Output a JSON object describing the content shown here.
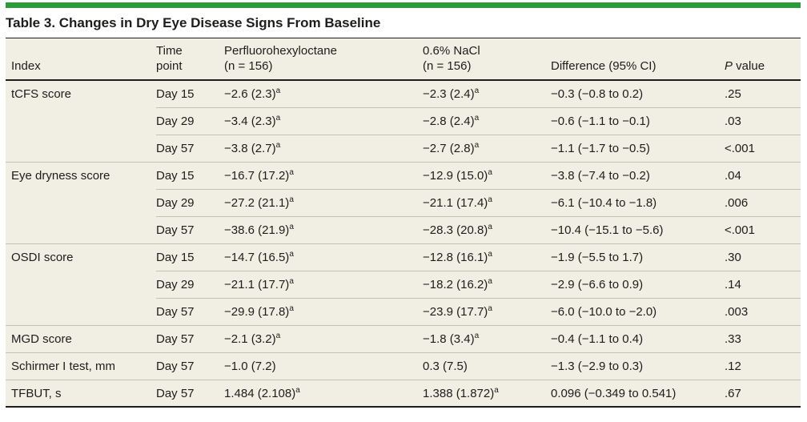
{
  "colors": {
    "accent_green": "#2d9a3c",
    "table_background": "#f1eee3",
    "rule_dark": "#1d1d1b",
    "rule_light": "#c3c1b8"
  },
  "title": "Table 3. Changes in Dry Eye Disease Signs From Baseline",
  "header": {
    "index": "Index",
    "time_line1": "Time",
    "time_line2": "point",
    "drug_line1": "Perfluorohexyloctane",
    "drug_line2": "(n = 156)",
    "nacl_line1": "0.6% NaCl",
    "nacl_line2": "(n = 156)",
    "difference": "Difference (95% CI)",
    "p_italic": "P",
    "p_rest": " value"
  },
  "groups": [
    {
      "index": "tCFS score",
      "rows": [
        {
          "time": "Day 15",
          "drug": "−2.6 (2.3)",
          "drug_sup": "a",
          "nacl": "−2.3 (2.4)",
          "nacl_sup": "a",
          "diff": "−0.3 (−0.8 to 0.2)",
          "p": ".25"
        },
        {
          "time": "Day 29",
          "drug": "−3.4 (2.3)",
          "drug_sup": "a",
          "nacl": "−2.8 (2.4)",
          "nacl_sup": "a",
          "diff": "−0.6 (−1.1 to −0.1)",
          "p": ".03"
        },
        {
          "time": "Day 57",
          "drug": "−3.8 (2.7)",
          "drug_sup": "a",
          "nacl": "−2.7 (2.8)",
          "nacl_sup": "a",
          "diff": "−1.1 (−1.7 to −0.5)",
          "p": "<.001"
        }
      ]
    },
    {
      "index": "Eye dryness score",
      "rows": [
        {
          "time": "Day 15",
          "drug": "−16.7 (17.2)",
          "drug_sup": "a",
          "nacl": "−12.9 (15.0)",
          "nacl_sup": "a",
          "diff": "−3.8 (−7.4 to −0.2)",
          "p": ".04"
        },
        {
          "time": "Day 29",
          "drug": "−27.2 (21.1)",
          "drug_sup": "a",
          "nacl": "−21.1 (17.4)",
          "nacl_sup": "a",
          "diff": "−6.1 (−10.4 to −1.8)",
          "p": ".006"
        },
        {
          "time": "Day 57",
          "drug": "−38.6 (21.9)",
          "drug_sup": "a",
          "nacl": "−28.3 (20.8)",
          "nacl_sup": "a",
          "diff": "−10.4 (−15.1 to −5.6)",
          "p": "<.001"
        }
      ]
    },
    {
      "index": "OSDI score",
      "rows": [
        {
          "time": "Day 15",
          "drug": "−14.7 (16.5)",
          "drug_sup": "a",
          "nacl": "−12.8 (16.1)",
          "nacl_sup": "a",
          "diff": "−1.9 (−5.5 to 1.7)",
          "p": ".30"
        },
        {
          "time": "Day 29",
          "drug": "−21.1 (17.7)",
          "drug_sup": "a",
          "nacl": "−18.2 (16.2)",
          "nacl_sup": "a",
          "diff": "−2.9 (−6.6 to 0.9)",
          "p": ".14"
        },
        {
          "time": "Day 57",
          "drug": "−29.9 (17.8)",
          "drug_sup": "a",
          "nacl": "−23.9 (17.7)",
          "nacl_sup": "a",
          "diff": "−6.0 (−10.0 to −2.0)",
          "p": ".003"
        }
      ]
    },
    {
      "index": "MGD score",
      "rows": [
        {
          "time": "Day 57",
          "drug": "−2.1 (3.2)",
          "drug_sup": "a",
          "nacl": "−1.8 (3.4)",
          "nacl_sup": "a",
          "diff": "−0.4 (−1.1 to 0.4)",
          "p": ".33"
        }
      ]
    },
    {
      "index": "Schirmer I test, mm",
      "rows": [
        {
          "time": "Day 57",
          "drug": "−1.0 (7.2)",
          "drug_sup": "",
          "nacl": "0.3 (7.5)",
          "nacl_sup": "",
          "diff": "−1.3 (−2.9 to 0.3)",
          "p": ".12"
        }
      ]
    },
    {
      "index": "TFBUT, s",
      "rows": [
        {
          "time": "Day 57",
          "drug": "1.484 (2.108)",
          "drug_sup": "a",
          "nacl": "1.388 (1.872)",
          "nacl_sup": "a",
          "diff": "0.096 (−0.349 to 0.541)",
          "p": ".67"
        }
      ]
    }
  ]
}
